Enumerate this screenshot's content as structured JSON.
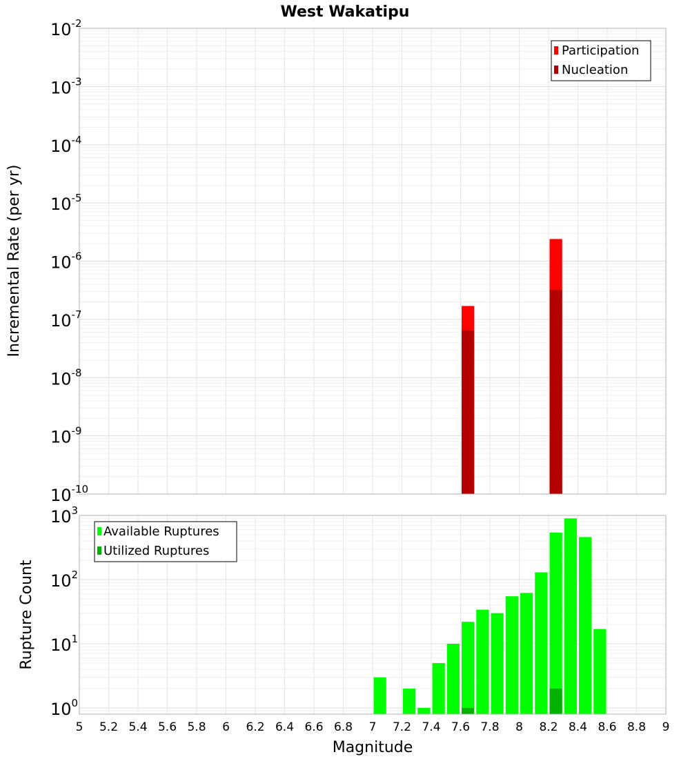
{
  "chart_data": [
    {
      "type": "bar",
      "title": "West Wakatipu",
      "xlabel": "Magnitude",
      "ylabel": "Incremental Rate (per yr)",
      "yscale": "log",
      "xlim": [
        5,
        9
      ],
      "ylim": [
        1e-10,
        0.01
      ],
      "yticks": [
        {
          "base": "10",
          "exp": "-2"
        },
        {
          "base": "10",
          "exp": "-3"
        },
        {
          "base": "10",
          "exp": "-4"
        },
        {
          "base": "10",
          "exp": "-5"
        },
        {
          "base": "10",
          "exp": "-6"
        },
        {
          "base": "10",
          "exp": "-7"
        },
        {
          "base": "10",
          "exp": "-8"
        },
        {
          "base": "10",
          "exp": "-9"
        },
        {
          "base": "10",
          "exp": "-10"
        }
      ],
      "bin_width": 0.1,
      "legend": "top-right",
      "series": [
        {
          "name": "Participation",
          "color": "#ff0000",
          "points": [
            {
              "x": 7.65,
              "y": 1.7e-07
            },
            {
              "x": 8.25,
              "y": 2.4e-06
            }
          ]
        },
        {
          "name": "Nucleation",
          "color": "#b20000",
          "points": [
            {
              "x": 7.65,
              "y": 6.5e-08
            },
            {
              "x": 8.25,
              "y": 3.2e-07
            }
          ]
        }
      ]
    },
    {
      "type": "bar",
      "xlabel": "Magnitude",
      "ylabel": "Rupture Count",
      "yscale": "log",
      "xlim": [
        5,
        9
      ],
      "ylim": [
        0.8,
        1000
      ],
      "yticks": [
        {
          "base": "10",
          "exp": "3"
        },
        {
          "base": "10",
          "exp": "2"
        },
        {
          "base": "10",
          "exp": "1"
        },
        {
          "base": "10",
          "exp": "0"
        }
      ],
      "xticks": [
        "5",
        "5.2",
        "5.4",
        "5.6",
        "5.8",
        "6",
        "6.2",
        "6.4",
        "6.6",
        "6.8",
        "7",
        "7.2",
        "7.4",
        "7.6",
        "7.8",
        "8",
        "8.2",
        "8.4",
        "8.6",
        "8.8",
        "9"
      ],
      "bin_width": 0.1,
      "legend": "top-left",
      "series": [
        {
          "name": "Available Ruptures",
          "color": "#00ff00",
          "points": [
            {
              "x": 7.05,
              "y": 3
            },
            {
              "x": 7.25,
              "y": 2
            },
            {
              "x": 7.35,
              "y": 1
            },
            {
              "x": 7.45,
              "y": 5
            },
            {
              "x": 7.55,
              "y": 10
            },
            {
              "x": 7.65,
              "y": 22
            },
            {
              "x": 7.75,
              "y": 34
            },
            {
              "x": 7.85,
              "y": 30
            },
            {
              "x": 7.95,
              "y": 55
            },
            {
              "x": 8.05,
              "y": 62
            },
            {
              "x": 8.15,
              "y": 130
            },
            {
              "x": 8.25,
              "y": 540
            },
            {
              "x": 8.35,
              "y": 900
            },
            {
              "x": 8.45,
              "y": 460
            },
            {
              "x": 8.55,
              "y": 17
            }
          ]
        },
        {
          "name": "Utilized Ruptures",
          "color": "#00b200",
          "points": [
            {
              "x": 7.65,
              "y": 1
            },
            {
              "x": 8.25,
              "y": 2
            }
          ]
        }
      ]
    }
  ]
}
